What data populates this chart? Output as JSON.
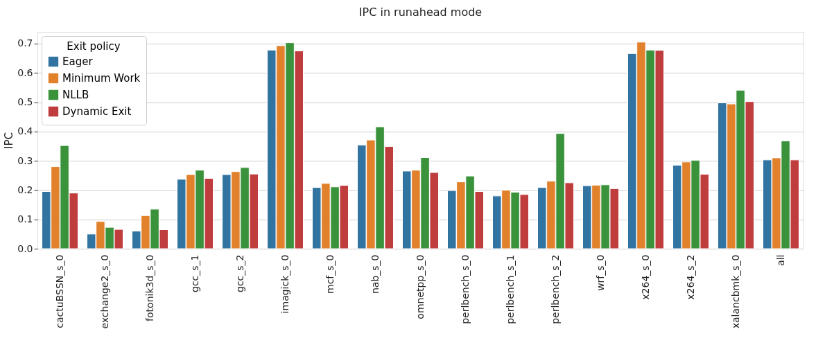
{
  "chart_data": {
    "type": "bar",
    "title": "IPC in runahead mode",
    "ylabel": "IPC",
    "legend_title": "Exit policy",
    "legend": "top left",
    "grid": "y",
    "categories": [
      "cactuBSSN_s_0",
      "exchange2_s_0",
      "fotonik3d_s_0",
      "gcc_s_1",
      "gcc_s_2",
      "imagick_s_0",
      "mcf_s_0",
      "nab_s_0",
      "omnetpp_s_0",
      "perlbench_s_0",
      "perlbench_s_1",
      "perlbench_s_2",
      "wrf_s_0",
      "x264_s_0",
      "x264_s_2",
      "xalancbmk_s_0",
      "all"
    ],
    "ylim": [
      0,
      0.74
    ],
    "yticks": [
      {
        "value": 0,
        "label": "0.0"
      },
      0.1,
      0.2,
      0.3,
      0.4,
      0.5,
      0.6,
      0.7
    ],
    "series": [
      {
        "name": "Eager",
        "color": "#3274a1",
        "values": [
          0.195,
          0.05,
          0.06,
          0.237,
          0.253,
          0.678,
          0.209,
          0.354,
          0.265,
          0.198,
          0.18,
          0.209,
          0.215,
          0.666,
          0.285,
          0.498,
          0.303
        ]
      },
      {
        "name": "Minimum Work",
        "color": "#e1812c",
        "values": [
          0.28,
          0.093,
          0.113,
          0.253,
          0.263,
          0.693,
          0.223,
          0.371,
          0.268,
          0.228,
          0.2,
          0.231,
          0.217,
          0.705,
          0.296,
          0.494,
          0.31
        ]
      },
      {
        "name": "NLLB",
        "color": "#3a923a",
        "values": [
          0.352,
          0.073,
          0.135,
          0.268,
          0.277,
          0.703,
          0.211,
          0.416,
          0.311,
          0.248,
          0.193,
          0.393,
          0.218,
          0.678,
          0.302,
          0.541,
          0.368
        ]
      },
      {
        "name": "Dynamic Exit",
        "color": "#c03d3e",
        "values": [
          0.19,
          0.066,
          0.065,
          0.24,
          0.255,
          0.675,
          0.216,
          0.349,
          0.26,
          0.195,
          0.185,
          0.225,
          0.205,
          0.677,
          0.254,
          0.502,
          0.303
        ]
      }
    ]
  }
}
